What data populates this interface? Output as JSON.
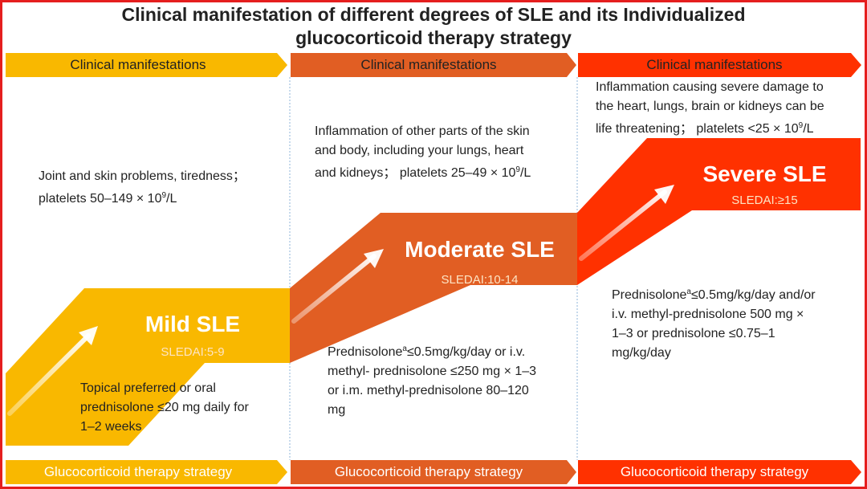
{
  "title": {
    "line1": "Clinical manifestation of different degrees of SLE and its Individualized",
    "line2": "glucocorticoid therapy strategy"
  },
  "colors": {
    "mild": "#f9b800",
    "moderate": "#e15e23",
    "severe": "#ff3100",
    "frame": "#e51e1e"
  },
  "columns": [
    {
      "header": "Clinical manifestations",
      "manifestation_line1": "Joint and skin problems, tiredness；",
      "manifestation_line2_pre": "platelets 50–149 × 10",
      "manifestation_line2_sup": "9",
      "manifestation_line2_post": "/L",
      "level": "Mild SLE",
      "sledai": "SLEDAI:5-9",
      "therapy_line1": "Topical preferred or oral",
      "therapy_line2": "prednisolone ≤20 mg daily for",
      "therapy_line3": "1–2 weeks",
      "footer": "Glucocorticoid therapy strategy"
    },
    {
      "header": "Clinical manifestations",
      "manifestation_line1": "Inflammation of other parts of the skin",
      "manifestation_line2": "and body, including your lungs, heart",
      "manifestation_line3_pre": "and kidneys；  platelets 25–49 × 10",
      "manifestation_line3_sup": "9",
      "manifestation_line3_post": "/L",
      "level": "Moderate SLE",
      "sledai": "SLEDAI:10-14",
      "therapy_line1_pre": "Prednisolone",
      "therapy_line1_sup": "a",
      "therapy_line1_post": "≤0.5mg/kg/day or i.v.",
      "therapy_line2": "methyl- prednisolone ≤250 mg × 1–3",
      "therapy_line3": "or i.m. methyl-prednisolone 80–120",
      "therapy_line4": "mg",
      "footer": "Glucocorticoid therapy strategy"
    },
    {
      "header": "Clinical manifestations",
      "manifestation_line1": "Inflammation causing severe damage to",
      "manifestation_line2": "the heart, lungs, brain or kidneys can be",
      "manifestation_line3_pre": "life threatening；  platelets <25 × 10",
      "manifestation_line3_sup": "9",
      "manifestation_line3_post": "/L",
      "level": "Severe SLE",
      "sledai": "SLEDAI:≥15",
      "therapy_line1_pre": "Prednisolone",
      "therapy_line1_sup": "a",
      "therapy_line1_post": "≤0.5mg/kg/day and/or",
      "therapy_line2": "i.v. methyl-prednisolone 500 mg ×",
      "therapy_line3": "1–3 or prednisolone ≤0.75–1",
      "therapy_line4": "mg/kg/day",
      "footer": "Glucocorticoid therapy strategy"
    }
  ]
}
